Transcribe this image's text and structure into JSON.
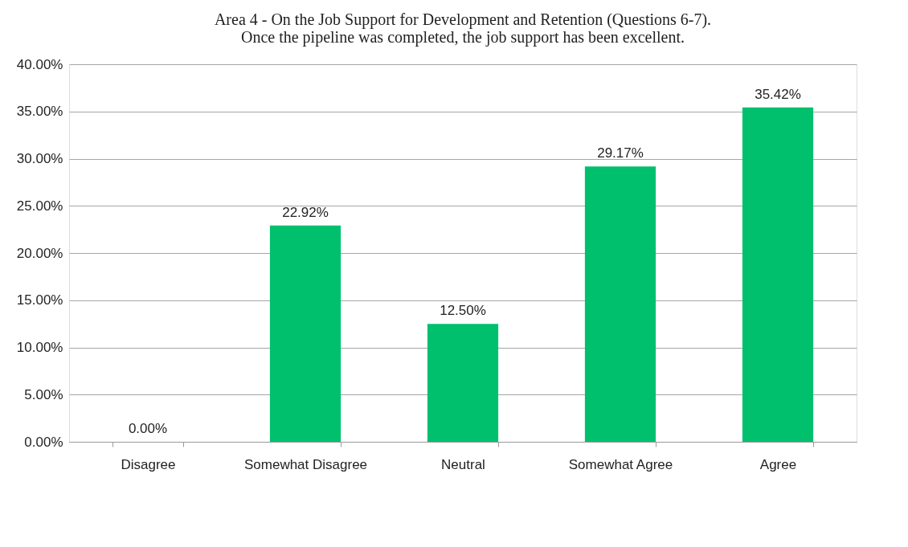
{
  "chart_data": {
    "type": "bar",
    "title": "Area 4 - On the Job Support for Development and Retention (Questions 6-7).\nOnce the pipeline was completed, the job support has been excellent.",
    "categories": [
      "Disagree",
      "Somewhat Disagree",
      "Neutral",
      "Somewhat Agree",
      "Agree"
    ],
    "values": [
      0,
      22.92,
      12.5,
      29.17,
      35.42
    ],
    "value_labels": [
      "0.00%",
      "22.92%",
      "12.50%",
      "29.17%",
      "35.42%"
    ],
    "color": "#00c06e",
    "ylim": [
      0,
      40
    ],
    "yticks": [
      {
        "value": 0,
        "label": "0.00%"
      },
      {
        "value": 5,
        "label": "5.00%"
      },
      {
        "value": 10,
        "label": "10.00%"
      },
      {
        "value": 15,
        "label": "15.00%"
      },
      {
        "value": 20,
        "label": "20.00%"
      },
      {
        "value": 25,
        "label": "25.00%"
      },
      {
        "value": 30,
        "label": "30.00%"
      },
      {
        "value": 35,
        "label": "35.00%"
      },
      {
        "value": 40,
        "label": "40.00%"
      }
    ],
    "grid": "y"
  }
}
